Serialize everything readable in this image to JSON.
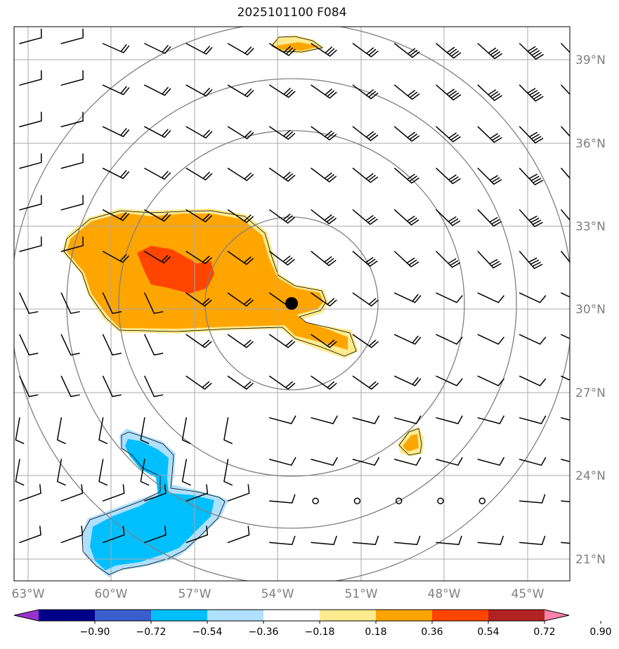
{
  "title": "2025101100 F084",
  "lat_labels": [
    "39°N",
    "36°N",
    "33°N",
    "30°N",
    "27°N",
    "24°N",
    "21°N"
  ],
  "lon_labels": [
    "63°W",
    "60°W",
    "57°W",
    "54°W",
    "51°W",
    "48°W",
    "45°W"
  ],
  "colorbar": {
    "tick_labels": [
      "−0.90",
      "−0.72",
      "−0.54",
      "−0.36",
      "−0.18",
      "0.18",
      "0.36",
      "0.54",
      "0.72",
      "0.90"
    ],
    "colors": [
      "#9932cc",
      "#00008b",
      "#3a5fcd",
      "#00bfff",
      "#b0e0ff",
      "#ffffff",
      "#ffeb8f",
      "#ffa500",
      "#ff4500",
      "#b22222",
      "#ff82ab"
    ]
  },
  "colors": {
    "gridline": "#a9a9a9",
    "range_ring": "#808080",
    "barb": "#000000",
    "center_marker": "#000000"
  },
  "map_extent": {
    "lon_min": -63.5,
    "lon_max": -43.5,
    "lat_min": 20.0,
    "lat_max": 40.2
  },
  "center": {
    "lon": -53.5,
    "lat": 30.2
  }
}
